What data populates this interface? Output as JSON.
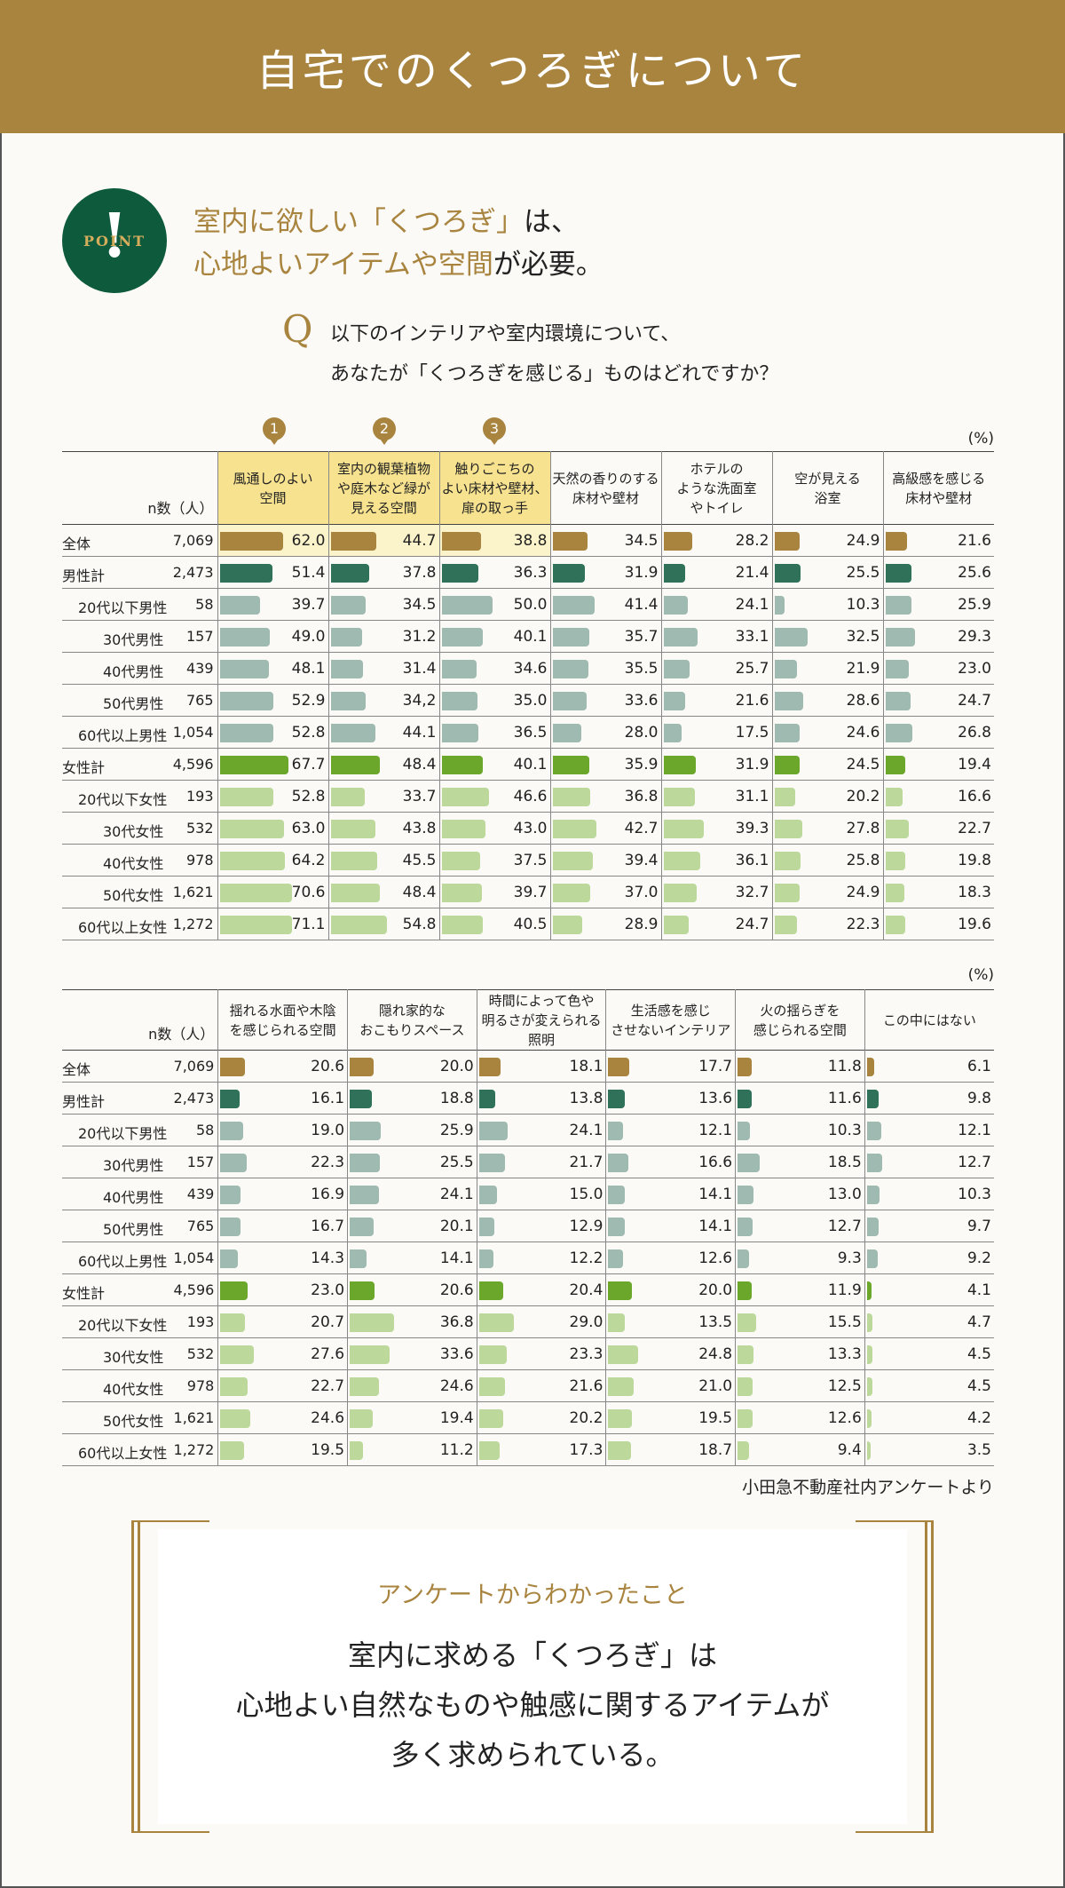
{
  "title": "自宅でのくつろぎについて",
  "point": {
    "badge_label": "POINT",
    "badge_mark": "!",
    "line1_a": "室内に欲しい「くつろぎ」",
    "line1_b": "は、",
    "line2_a": "心地よいアイテムや空間",
    "line2_b": "が必要。"
  },
  "question": {
    "mark": "Q",
    "line1": "以下のインテリアや室内環境について、",
    "line2": "あなたが「くつろぎを感じる」ものはどれですか？"
  },
  "unit_label": "(%)",
  "n_header": "n数（人）",
  "colors": {
    "gold": "#a8843f",
    "dark_green": "#2f7259",
    "male_light": "#9fbab1",
    "female_dark": "#6aa72a",
    "female_light": "#bcd89a",
    "highlight": "#f7e28f"
  },
  "chart_data": [
    {
      "type": "table",
      "unit": "(%)",
      "ranks": [
        "1",
        "2",
        "3"
      ],
      "columns": [
        "風通しのよい空間",
        "室内の観葉植物や庭木など緑が見える空間",
        "触りごこちのよい床材や壁材、扉の取っ手",
        "天然の香りのする床材や壁材",
        "ホテルのような洗面室やトイレ",
        "空が見える浴室",
        "高級感を感じる床材や壁材"
      ],
      "columns_display": [
        [
          "風通しのよい",
          "空間"
        ],
        [
          "室内の観葉植物",
          "や庭木など緑が",
          "見える空間"
        ],
        [
          "触りごこちの",
          "よい床材や壁材、",
          "扉の取っ手"
        ],
        [
          "天然の香りのする",
          "床材や壁材"
        ],
        [
          "ホテルの",
          "ような洗面室",
          "やトイレ"
        ],
        [
          "空が見える",
          "浴室"
        ],
        [
          "高級感を感じる",
          "床材や壁材"
        ]
      ],
      "rows": [
        {
          "label": "全体",
          "n": "7,069",
          "group": "total",
          "values": [
            "62.0",
            "44.7",
            "38.8",
            "34.5",
            "28.2",
            "24.9",
            "21.6"
          ]
        },
        {
          "label": "男性計",
          "n": "2,473",
          "group": "male_total",
          "values": [
            "51.4",
            "37.8",
            "36.3",
            "31.9",
            "21.4",
            "25.5",
            "25.6"
          ]
        },
        {
          "label": "20代以下男性",
          "n": "58",
          "group": "male",
          "values": [
            "39.7",
            "34.5",
            "50.0",
            "41.4",
            "24.1",
            "10.3",
            "25.9"
          ]
        },
        {
          "label": "30代男性",
          "n": "157",
          "group": "male",
          "values": [
            "49.0",
            "31.2",
            "40.1",
            "35.7",
            "33.1",
            "32.5",
            "29.3"
          ]
        },
        {
          "label": "40代男性",
          "n": "439",
          "group": "male",
          "values": [
            "48.1",
            "31.4",
            "34.6",
            "35.5",
            "25.7",
            "21.9",
            "23.0"
          ]
        },
        {
          "label": "50代男性",
          "n": "765",
          "group": "male",
          "values": [
            "52.9",
            "34,2",
            "35.0",
            "33.6",
            "21.6",
            "28.6",
            "24.7"
          ]
        },
        {
          "label": "60代以上男性",
          "n": "1,054",
          "group": "male",
          "values": [
            "52.8",
            "44.1",
            "36.5",
            "28.0",
            "17.5",
            "24.6",
            "26.8"
          ]
        },
        {
          "label": "女性計",
          "n": "4,596",
          "group": "female_total",
          "values": [
            "67.7",
            "48.4",
            "40.1",
            "35.9",
            "31.9",
            "24.5",
            "19.4"
          ]
        },
        {
          "label": "20代以下女性",
          "n": "193",
          "group": "female",
          "values": [
            "52.8",
            "33.7",
            "46.6",
            "36.8",
            "31.1",
            "20.2",
            "16.6"
          ]
        },
        {
          "label": "30代女性",
          "n": "532",
          "group": "female",
          "values": [
            "63.0",
            "43.8",
            "43.0",
            "42.7",
            "39.3",
            "27.8",
            "22.7"
          ]
        },
        {
          "label": "40代女性",
          "n": "978",
          "group": "female",
          "values": [
            "64.2",
            "45.5",
            "37.5",
            "39.4",
            "36.1",
            "25.8",
            "19.8"
          ]
        },
        {
          "label": "50代女性",
          "n": "1,621",
          "group": "female",
          "values": [
            "70.6",
            "48.4",
            "39.7",
            "37.0",
            "32.7",
            "24.9",
            "18.3"
          ]
        },
        {
          "label": "60代以上女性",
          "n": "1,272",
          "group": "female",
          "values": [
            "71.1",
            "54.8",
            "40.5",
            "28.9",
            "24.7",
            "22.3",
            "19.6"
          ]
        }
      ]
    },
    {
      "type": "table",
      "unit": "(%)",
      "columns": [
        "揺れる水面や木陰を感じられる空間",
        "隠れ家的なおこもりスペース",
        "時間によって色や明るさが変えられる照明",
        "生活感を感じさせないインテリア",
        "火の揺らぎを感じられる空間",
        "この中にはない"
      ],
      "columns_display": [
        [
          "揺れる水面や木陰",
          "を感じられる空間"
        ],
        [
          "隠れ家的な",
          "おこもりスペース"
        ],
        [
          "時間によって色や",
          "明るさが変えられる照明"
        ],
        [
          "生活感を感じ",
          "させないインテリア"
        ],
        [
          "火の揺らぎを",
          "感じられる空間"
        ],
        [
          "この中にはない"
        ]
      ],
      "rows": [
        {
          "label": "全体",
          "n": "7,069",
          "group": "total",
          "values": [
            "20.6",
            "20.0",
            "18.1",
            "17.7",
            "11.8",
            "6.1"
          ]
        },
        {
          "label": "男性計",
          "n": "2,473",
          "group": "male_total",
          "values": [
            "16.1",
            "18.8",
            "13.8",
            "13.6",
            "11.6",
            "9.8"
          ]
        },
        {
          "label": "20代以下男性",
          "n": "58",
          "group": "male",
          "values": [
            "19.0",
            "25.9",
            "24.1",
            "12.1",
            "10.3",
            "12.1"
          ]
        },
        {
          "label": "30代男性",
          "n": "157",
          "group": "male",
          "values": [
            "22.3",
            "25.5",
            "21.7",
            "16.6",
            "18.5",
            "12.7"
          ]
        },
        {
          "label": "40代男性",
          "n": "439",
          "group": "male",
          "values": [
            "16.9",
            "24.1",
            "15.0",
            "14.1",
            "13.0",
            "10.3"
          ]
        },
        {
          "label": "50代男性",
          "n": "765",
          "group": "male",
          "values": [
            "16.7",
            "20.1",
            "12.9",
            "14.1",
            "12.7",
            "9.7"
          ]
        },
        {
          "label": "60代以上男性",
          "n": "1,054",
          "group": "male",
          "values": [
            "14.3",
            "14.1",
            "12.2",
            "12.6",
            "9.3",
            "9.2"
          ]
        },
        {
          "label": "女性計",
          "n": "4,596",
          "group": "female_total",
          "values": [
            "23.0",
            "20.6",
            "20.4",
            "20.0",
            "11.9",
            "4.1"
          ]
        },
        {
          "label": "20代以下女性",
          "n": "193",
          "group": "female",
          "values": [
            "20.7",
            "36.8",
            "29.0",
            "13.5",
            "15.5",
            "4.7"
          ]
        },
        {
          "label": "30代女性",
          "n": "532",
          "group": "female",
          "values": [
            "27.6",
            "33.6",
            "23.3",
            "24.8",
            "13.3",
            "4.5"
          ]
        },
        {
          "label": "40代女性",
          "n": "978",
          "group": "female",
          "values": [
            "22.7",
            "24.6",
            "21.6",
            "21.0",
            "12.5",
            "4.5"
          ]
        },
        {
          "label": "50代女性",
          "n": "1,621",
          "group": "female",
          "values": [
            "24.6",
            "19.4",
            "20.2",
            "19.5",
            "12.6",
            "4.2"
          ]
        },
        {
          "label": "60代以上女性",
          "n": "1,272",
          "group": "female",
          "values": [
            "19.5",
            "11.2",
            "17.3",
            "18.7",
            "9.4",
            "3.5"
          ]
        }
      ]
    }
  ],
  "source": "小田急不動産社内アンケートより",
  "conclusion": {
    "subtitle": "アンケートからわかったこと",
    "line1": "室内に求める「くつろぎ」は",
    "line2": "心地よい自然なものや触感に関するアイテムが",
    "line3": "多く求められている。"
  }
}
